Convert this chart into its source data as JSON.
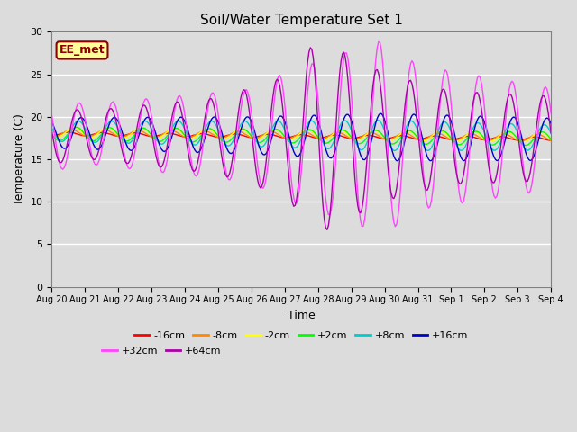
{
  "title": "Soil/Water Temperature Set 1",
  "xlabel": "Time",
  "ylabel": "Temperature (C)",
  "ylim": [
    0,
    30
  ],
  "yticks": [
    0,
    5,
    10,
    15,
    20,
    25,
    30
  ],
  "background_color": "#dcdcdc",
  "plot_bg_color": "#dcdcdc",
  "annotation_text": "EE_met",
  "annotation_bg": "#ffff99",
  "annotation_border": "#8b0000",
  "x_labels": [
    "Aug 20",
    "Aug 21",
    "Aug 22",
    "Aug 23",
    "Aug 24",
    "Aug 25",
    "Aug 26",
    "Aug 27",
    "Aug 28",
    "Aug 29",
    "Aug 30",
    "Aug 31",
    "Sep 1",
    "Sep 2",
    "Sep 3",
    "Sep 4"
  ],
  "series": [
    {
      "label": "-16cm",
      "color": "#ff0000"
    },
    {
      "label": "-8cm",
      "color": "#ff8800"
    },
    {
      "label": "-2cm",
      "color": "#ffff00"
    },
    {
      "label": "+2cm",
      "color": "#00ff00"
    },
    {
      "label": "+8cm",
      "color": "#00cccc"
    },
    {
      "label": "+16cm",
      "color": "#0000cc"
    },
    {
      "label": "+32cm",
      "color": "#ff44ff"
    },
    {
      "label": "+64cm",
      "color": "#aa00aa"
    }
  ]
}
